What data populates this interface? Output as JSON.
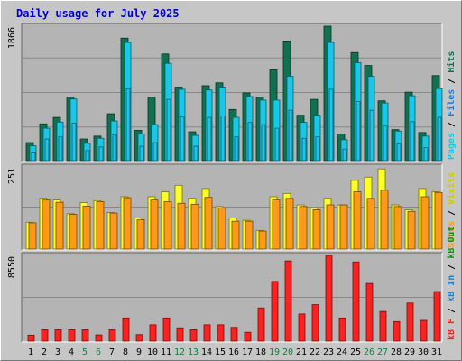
{
  "title": "Daily usage for July 2025",
  "colors": {
    "frame_bg": "#c6c6c6",
    "plot_bg": "#b4b4b4",
    "gridline": "#888888",
    "title": "#0000cc",
    "hits": "#107050",
    "files": "#18c8e8",
    "pages": "#18c8e8",
    "visits": "#ffff22",
    "sites": "#ff9a18",
    "kb_out": "#109010",
    "kb_in": "#2080d0",
    "kb_f": "#ff2020",
    "weekend_label": "#108040",
    "weekday_label": "#000000"
  },
  "x_labels": [
    "1",
    "2",
    "3",
    "4",
    "5",
    "6",
    "7",
    "8",
    "9",
    "10",
    "11",
    "12",
    "13",
    "14",
    "15",
    "16",
    "17",
    "18",
    "19",
    "20",
    "21",
    "22",
    "23",
    "24",
    "25",
    "26",
    "27",
    "28",
    "29",
    "30",
    "31"
  ],
  "weekend_days": [
    5,
    6,
    12,
    13,
    19,
    20,
    26,
    27
  ],
  "legends": {
    "top": [
      {
        "text": "Pages",
        "color": "#18c8e8"
      },
      {
        "text": "/",
        "color": "#000000"
      },
      {
        "text": "Files",
        "color": "#2080d0"
      },
      {
        "text": "/",
        "color": "#000000"
      },
      {
        "text": "Hits",
        "color": "#107050"
      }
    ],
    "middle": [
      {
        "text": "Sites",
        "color": "#ff9a18"
      },
      {
        "text": "/",
        "color": "#000000"
      },
      {
        "text": "Visits",
        "color": "#cccc00"
      }
    ],
    "bottom": [
      {
        "text": "kB F",
        "color": "#ff2020"
      },
      {
        "text": "/",
        "color": "#000000"
      },
      {
        "text": "kB In",
        "color": "#2080d0"
      },
      {
        "text": "/",
        "color": "#000000"
      },
      {
        "text": "kB Out",
        "color": "#109010"
      }
    ]
  },
  "chart_data": [
    {
      "type": "bar",
      "name": "top",
      "y_max_label": "1866",
      "ylim": [
        0,
        1866
      ],
      "categories": [
        "1",
        "2",
        "3",
        "4",
        "5",
        "6",
        "7",
        "8",
        "9",
        "10",
        "11",
        "12",
        "13",
        "14",
        "15",
        "16",
        "17",
        "18",
        "19",
        "20",
        "21",
        "22",
        "23",
        "24",
        "25",
        "26",
        "27",
        "28",
        "29",
        "30",
        "31"
      ],
      "series": [
        {
          "name": "Hits",
          "values": [
            250,
            510,
            600,
            880,
            300,
            340,
            650,
            1700,
            420,
            880,
            1480,
            1020,
            400,
            1040,
            1080,
            710,
            940,
            880,
            1260,
            1660,
            630,
            850,
            1866,
            370,
            1500,
            1320,
            830,
            430,
            950,
            390,
            1180
          ]
        },
        {
          "name": "Files",
          "values": [
            205,
            450,
            535,
            855,
            240,
            310,
            550,
            1640,
            370,
            500,
            1350,
            990,
            350,
            980,
            1020,
            600,
            890,
            840,
            840,
            1170,
            530,
            630,
            1640,
            290,
            1360,
            1170,
            800,
            410,
            900,
            340,
            1000
          ]
        },
        {
          "name": "Pages",
          "values": [
            120,
            300,
            330,
            520,
            140,
            190,
            360,
            1000,
            200,
            250,
            850,
            610,
            200,
            600,
            620,
            330,
            530,
            500,
            450,
            700,
            310,
            330,
            990,
            160,
            820,
            700,
            480,
            230,
            540,
            180,
            600
          ]
        }
      ]
    },
    {
      "type": "bar",
      "name": "middle",
      "y_max_label": "251",
      "ylim": [
        0,
        251
      ],
      "categories": [
        "1",
        "2",
        "3",
        "4",
        "5",
        "6",
        "7",
        "8",
        "9",
        "10",
        "11",
        "12",
        "13",
        "14",
        "15",
        "16",
        "17",
        "18",
        "19",
        "20",
        "21",
        "22",
        "23",
        "24",
        "25",
        "26",
        "27",
        "28",
        "29",
        "30",
        "31"
      ],
      "series": [
        {
          "name": "Visits",
          "values": [
            82,
            155,
            150,
            108,
            142,
            148,
            112,
            160,
            95,
            160,
            175,
            195,
            155,
            185,
            130,
            95,
            88,
            57,
            160,
            170,
            135,
            125,
            155,
            135,
            210,
            220,
            245,
            135,
            120,
            185,
            175
          ]
        },
        {
          "name": "Sites",
          "values": [
            80,
            150,
            143,
            106,
            131,
            145,
            110,
            157,
            90,
            150,
            145,
            140,
            137,
            158,
            126,
            85,
            85,
            55,
            150,
            155,
            130,
            120,
            135,
            135,
            175,
            155,
            180,
            130,
            115,
            160,
            173
          ]
        }
      ]
    },
    {
      "type": "bar",
      "name": "bottom",
      "y_max_label": "8550",
      "ylim": [
        0,
        8550
      ],
      "categories": [
        "1",
        "2",
        "3",
        "4",
        "5",
        "6",
        "7",
        "8",
        "9",
        "10",
        "11",
        "12",
        "13",
        "14",
        "15",
        "16",
        "17",
        "18",
        "19",
        "20",
        "21",
        "22",
        "23",
        "24",
        "25",
        "26",
        "27",
        "28",
        "29",
        "30",
        "31"
      ],
      "series": [
        {
          "name": "kB F",
          "values": [
            600,
            1130,
            1130,
            1130,
            1130,
            620,
            1130,
            2310,
            650,
            1630,
            2310,
            1330,
            1130,
            1630,
            1630,
            1370,
            880,
            3310,
            5950,
            8000,
            2710,
            3640,
            8550,
            2310,
            7900,
            5750,
            2960,
            1950,
            3800,
            2070,
            4940
          ]
        },
        {
          "name": "kB In",
          "values": [
            0,
            0,
            0,
            0,
            0,
            0,
            0,
            0,
            0,
            0,
            0,
            0,
            0,
            0,
            0,
            0,
            0,
            0,
            0,
            0,
            0,
            0,
            0,
            0,
            0,
            0,
            0,
            0,
            0,
            0,
            0
          ]
        },
        {
          "name": "kB Out",
          "values": [
            0,
            0,
            0,
            0,
            0,
            0,
            0,
            0,
            0,
            0,
            0,
            0,
            0,
            0,
            0,
            0,
            0,
            0,
            0,
            0,
            0,
            0,
            0,
            0,
            0,
            0,
            0,
            0,
            0,
            0,
            0
          ]
        }
      ]
    }
  ]
}
